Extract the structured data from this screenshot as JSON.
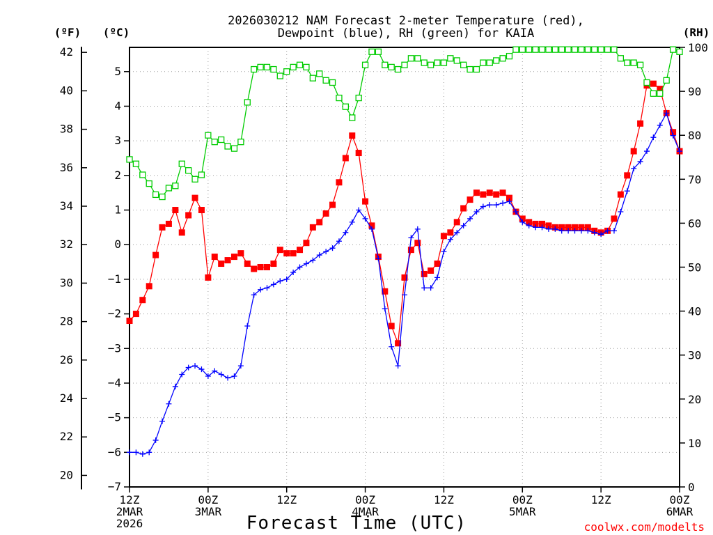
{
  "chart_data": {
    "type": "line",
    "title_lines": [
      "2026030212 NAM Forecast 2-meter Temperature (red),",
      "Dewpoint (blue), RH (green) for KAIA"
    ],
    "units": {
      "fahrenheit": "(ºF)",
      "celsius": "(ºC)",
      "rh": "(RH)"
    },
    "xlabel": "Forecast Time (UTC)",
    "credit": "coolwx.com/modelts",
    "colors": {
      "temperature": "#ff0000",
      "dewpoint": "#0000ff",
      "rh": "#00cc00"
    },
    "grid": true,
    "x_hours_range": [
      0,
      84
    ],
    "x_ticks": [
      {
        "hour": 0,
        "lines": [
          "12Z",
          "2MAR",
          "2026"
        ]
      },
      {
        "hour": 12,
        "lines": [
          "00Z",
          "3MAR"
        ]
      },
      {
        "hour": 24,
        "lines": [
          "12Z"
        ]
      },
      {
        "hour": 36,
        "lines": [
          "00Z",
          "4MAR"
        ]
      },
      {
        "hour": 48,
        "lines": [
          "12Z"
        ]
      },
      {
        "hour": 60,
        "lines": [
          "00Z",
          "5MAR"
        ]
      },
      {
        "hour": 72,
        "lines": [
          "12Z"
        ]
      },
      {
        "hour": 84,
        "lines": [
          "00Z",
          "6MAR"
        ]
      }
    ],
    "celsius_ticks": [
      "5",
      "4",
      "3",
      "2",
      "1",
      "0",
      "−1",
      "−2",
      "−3",
      "−4",
      "−5",
      "−6",
      "−7"
    ],
    "fahrenheit_ticks": [
      "42",
      "40",
      "38",
      "36",
      "34",
      "32",
      "30",
      "28",
      "26",
      "24",
      "22",
      "20"
    ],
    "rh_ticks": [
      "100",
      "90",
      "80",
      "70",
      "60",
      "50",
      "40",
      "30",
      "20",
      "10",
      "0"
    ],
    "celsius_range": [
      -7,
      5.7
    ],
    "rh_range": [
      0,
      100
    ],
    "series": [
      {
        "name": "Temperature",
        "axis": "celsius",
        "marker": "filled-square",
        "x": [
          0,
          1,
          2,
          3,
          4,
          5,
          6,
          7,
          8,
          9,
          10,
          11,
          12,
          13,
          14,
          15,
          16,
          17,
          18,
          19,
          20,
          21,
          22,
          23,
          24,
          25,
          26,
          27,
          28,
          29,
          30,
          31,
          32,
          33,
          34,
          35,
          36,
          37,
          38,
          39,
          40,
          41,
          42,
          43,
          44,
          45,
          46,
          47,
          48,
          49,
          50,
          51,
          52,
          53,
          54,
          55,
          56,
          57,
          58,
          59,
          60,
          61,
          62,
          63,
          64,
          65,
          66,
          67,
          68,
          69,
          70,
          71,
          72,
          73,
          74,
          75,
          76,
          77,
          78,
          79,
          80,
          81,
          82,
          83,
          84
        ],
        "values": [
          -2.2,
          -2.0,
          -1.6,
          -1.2,
          -0.3,
          0.5,
          0.6,
          1.0,
          0.35,
          0.85,
          1.35,
          1.0,
          -0.95,
          -0.35,
          -0.55,
          -0.45,
          -0.35,
          -0.25,
          -0.55,
          -0.7,
          -0.65,
          -0.65,
          -0.55,
          -0.15,
          -0.25,
          -0.25,
          -0.15,
          0.05,
          0.5,
          0.65,
          0.9,
          1.15,
          1.8,
          2.5,
          3.15,
          2.65,
          1.25,
          0.55,
          -0.35,
          -1.35,
          -2.35,
          -2.85,
          -0.95,
          -0.15,
          0.05,
          -0.85,
          -0.75,
          -0.55,
          0.25,
          0.35,
          0.65,
          1.05,
          1.3,
          1.5,
          1.45,
          1.5,
          1.45,
          1.5,
          1.35,
          0.95,
          0.75,
          0.65,
          0.6,
          0.6,
          0.55,
          0.5,
          0.5,
          0.5,
          0.5,
          0.5,
          0.5,
          0.4,
          0.35,
          0.4,
          0.75,
          1.45,
          2.0,
          2.7,
          3.5,
          4.6,
          4.65,
          4.5,
          3.8,
          3.25,
          2.7
        ]
      },
      {
        "name": "Dewpoint",
        "axis": "celsius",
        "marker": "plus",
        "x": [
          0,
          1,
          2,
          3,
          4,
          5,
          6,
          7,
          8,
          9,
          10,
          11,
          12,
          13,
          14,
          15,
          16,
          17,
          18,
          19,
          20,
          21,
          22,
          23,
          24,
          25,
          26,
          27,
          28,
          29,
          30,
          31,
          32,
          33,
          34,
          35,
          36,
          37,
          38,
          39,
          40,
          41,
          42,
          43,
          44,
          45,
          46,
          47,
          48,
          49,
          50,
          51,
          52,
          53,
          54,
          55,
          56,
          57,
          58,
          59,
          60,
          61,
          62,
          63,
          64,
          65,
          66,
          67,
          68,
          69,
          70,
          71,
          72,
          73,
          74,
          75,
          76,
          77,
          78,
          79,
          80,
          81,
          82,
          83,
          84
        ],
        "values": [
          -6.0,
          -6.0,
          -6.05,
          -6.0,
          -5.65,
          -5.1,
          -4.6,
          -4.1,
          -3.75,
          -3.55,
          -3.5,
          -3.6,
          -3.8,
          -3.65,
          -3.75,
          -3.85,
          -3.8,
          -3.5,
          -2.35,
          -1.45,
          -1.3,
          -1.25,
          -1.15,
          -1.05,
          -1.0,
          -0.8,
          -0.65,
          -0.55,
          -0.45,
          -0.3,
          -0.2,
          -0.1,
          0.1,
          0.35,
          0.65,
          1.0,
          0.75,
          0.45,
          -0.4,
          -1.85,
          -2.95,
          -3.5,
          -1.45,
          0.2,
          0.45,
          -1.25,
          -1.25,
          -0.95,
          -0.2,
          0.15,
          0.35,
          0.55,
          0.75,
          0.95,
          1.1,
          1.15,
          1.15,
          1.2,
          1.25,
          0.95,
          0.65,
          0.55,
          0.5,
          0.5,
          0.45,
          0.45,
          0.4,
          0.4,
          0.4,
          0.4,
          0.4,
          0.35,
          0.3,
          0.4,
          0.4,
          0.95,
          1.55,
          2.2,
          2.4,
          2.7,
          3.1,
          3.45,
          3.8,
          3.15,
          2.7
        ]
      },
      {
        "name": "RH",
        "axis": "rh",
        "marker": "open-square",
        "x": [
          0,
          1,
          2,
          3,
          4,
          5,
          6,
          7,
          8,
          9,
          10,
          11,
          12,
          13,
          14,
          15,
          16,
          17,
          18,
          19,
          20,
          21,
          22,
          23,
          24,
          25,
          26,
          27,
          28,
          29,
          30,
          31,
          32,
          33,
          34,
          35,
          36,
          37,
          38,
          39,
          40,
          41,
          42,
          43,
          44,
          45,
          46,
          47,
          48,
          49,
          50,
          51,
          52,
          53,
          54,
          55,
          56,
          57,
          58,
          59,
          60,
          61,
          62,
          63,
          64,
          65,
          66,
          67,
          68,
          69,
          70,
          71,
          72,
          73,
          74,
          75,
          76,
          77,
          78,
          79,
          80,
          81,
          82,
          83,
          84
        ],
        "values": [
          74.5,
          73.5,
          71,
          69,
          66.5,
          66,
          68,
          68.5,
          73.5,
          72,
          70,
          71,
          80,
          78.5,
          79,
          77.5,
          77,
          78.5,
          87.5,
          95,
          95.5,
          95.5,
          95,
          93.5,
          94.5,
          95.5,
          96,
          95.5,
          93,
          94,
          92.5,
          92,
          88.5,
          86.5,
          84,
          88.5,
          96,
          99,
          99,
          96,
          95.5,
          95,
          96,
          97.5,
          97.5,
          96.5,
          96,
          96.5,
          96.5,
          97.5,
          97,
          96,
          95,
          95,
          96.5,
          96.5,
          97,
          97.5,
          98,
          99.5,
          99.5,
          99.5,
          99.5,
          99.5,
          99.5,
          99.5,
          99.5,
          99.5,
          99.5,
          99.5,
          99.5,
          99.5,
          99.5,
          99.5,
          99.5,
          97.5,
          96.5,
          96.5,
          96,
          92,
          89.5,
          89.5,
          92.5,
          99.5,
          99
        ]
      }
    ]
  }
}
